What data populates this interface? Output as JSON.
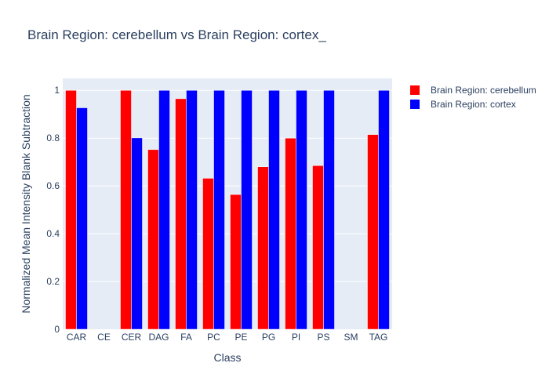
{
  "chart_data": {
    "type": "bar",
    "title": "Brain Region: cerebellum vs Brain Region: cortex_",
    "xlabel": "Class",
    "ylabel": "Normalized Mean Intensity Blank Subtraction",
    "categories": [
      "CAR",
      "CE",
      "CER",
      "DAG",
      "FA",
      "PC",
      "PE",
      "PG",
      "PI",
      "PS",
      "SM",
      "TAG"
    ],
    "ylim": [
      0,
      1.05
    ],
    "yticks": [
      "0",
      "0.2",
      "0.4",
      "0.6",
      "0.8",
      "1"
    ],
    "grid": true,
    "legend_position": "top-right",
    "series": [
      {
        "name": "Brain Region: cerebellum",
        "color": "#ff0000",
        "values": [
          1.0,
          0,
          1.0,
          0.752,
          0.965,
          0.632,
          0.564,
          0.68,
          0.8,
          0.685,
          0,
          0.815
        ]
      },
      {
        "name": "Brain Region: cortex",
        "color": "#0000ff",
        "values": [
          0.927,
          0,
          0.801,
          1.0,
          1.0,
          1.0,
          1.0,
          1.0,
          1.0,
          1.0,
          0,
          1.0
        ]
      }
    ]
  }
}
